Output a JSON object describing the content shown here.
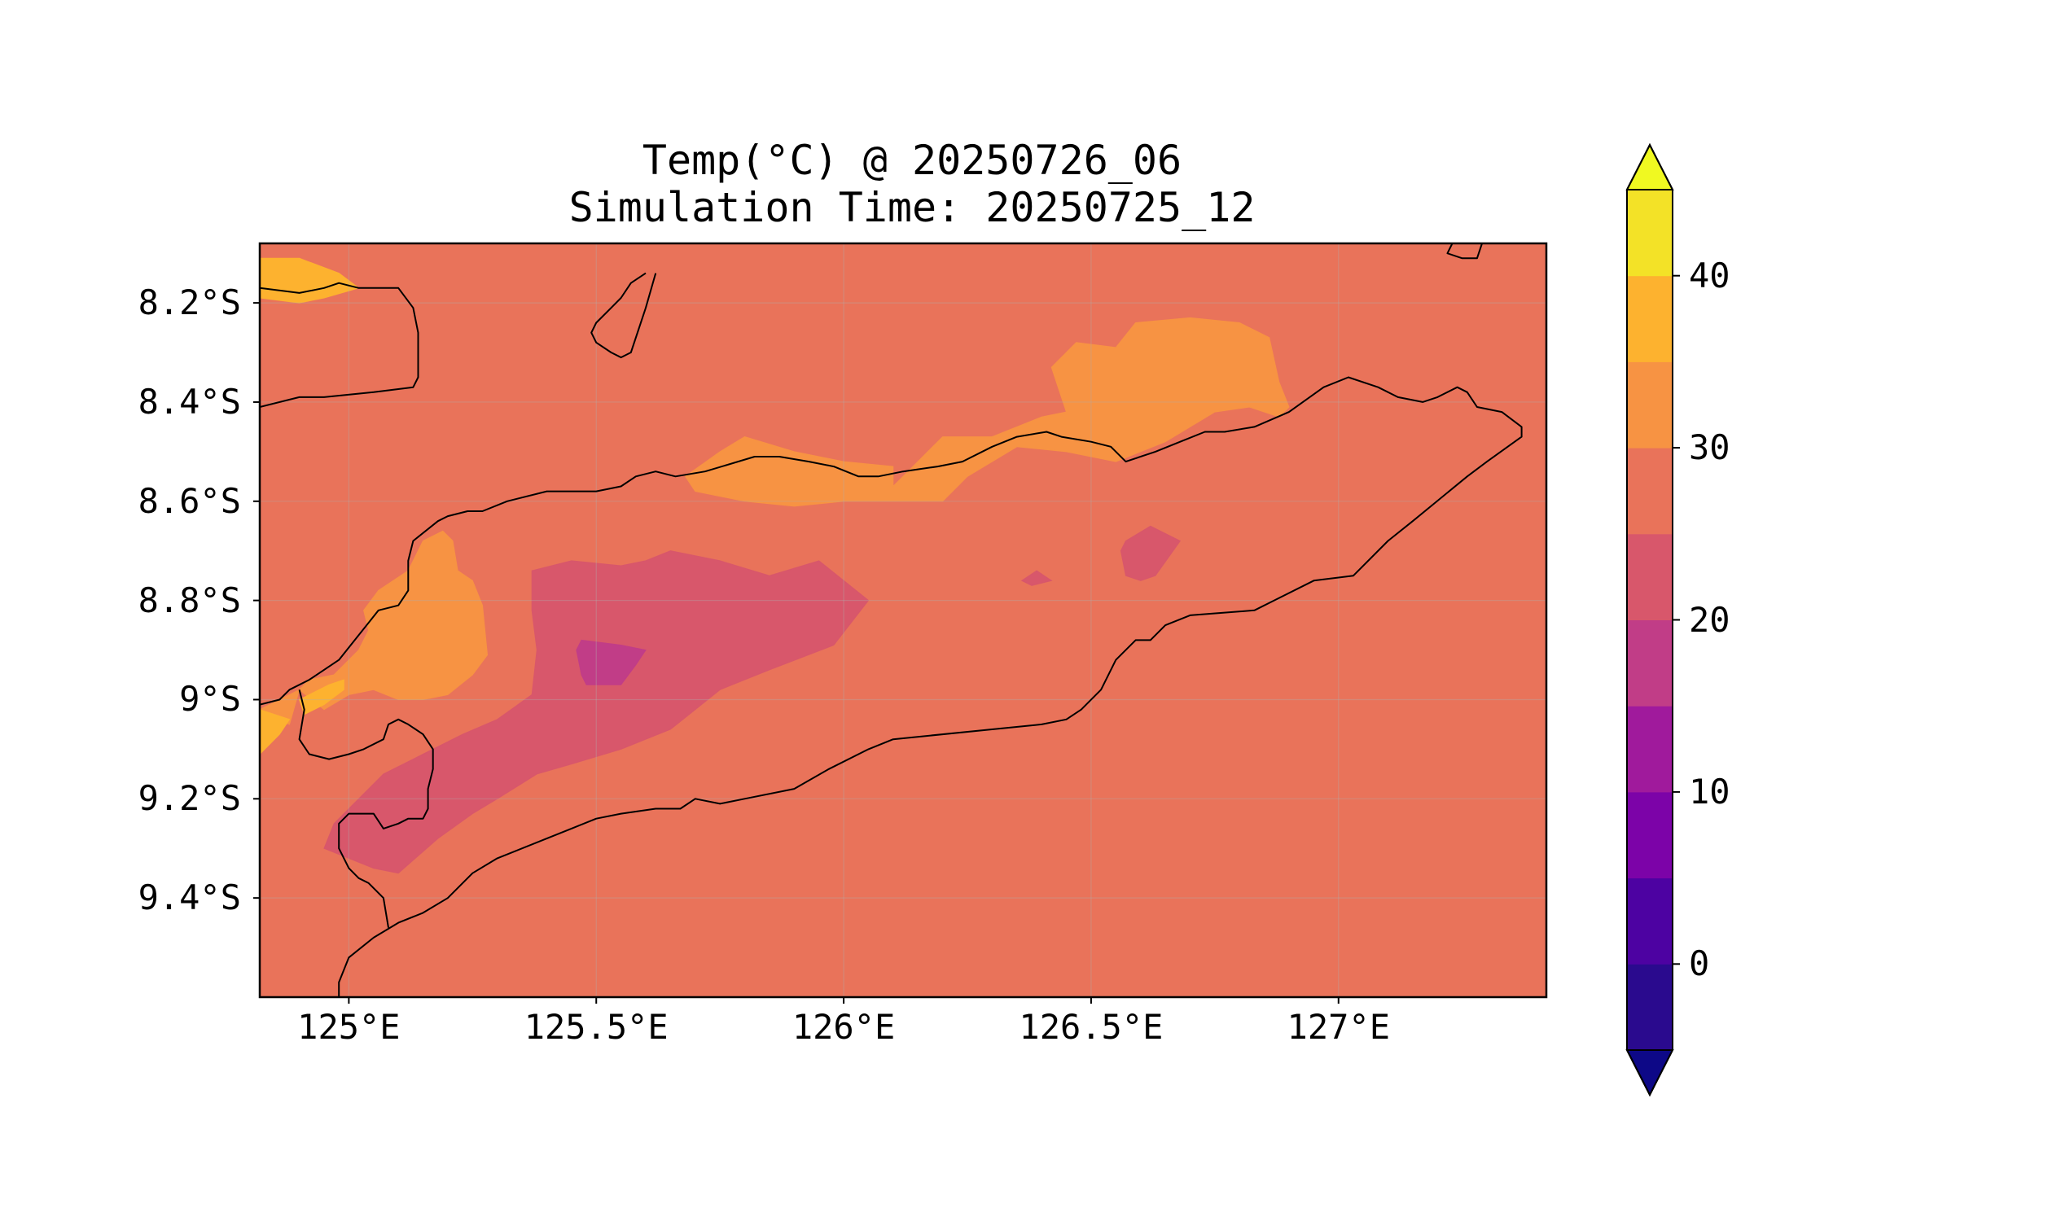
{
  "title": {
    "line1": "Temp(°C) @ 20250726_06",
    "line2": "Simulation Time: 20250725_12"
  },
  "map": {
    "lon_range": [
      124.82,
      127.42
    ],
    "lat_range": [
      -9.6,
      -8.08
    ],
    "background_fill": "#e9735a",
    "x_ticks": [
      {
        "value": 125.0,
        "label": "125°E"
      },
      {
        "value": 125.5,
        "label": "125.5°E"
      },
      {
        "value": 126.0,
        "label": "126°E"
      },
      {
        "value": 126.5,
        "label": "126.5°E"
      },
      {
        "value": 127.0,
        "label": "127°E"
      }
    ],
    "y_ticks": [
      {
        "value": -8.2,
        "label": "8.2°S"
      },
      {
        "value": -8.4,
        "label": "8.4°S"
      },
      {
        "value": -8.6,
        "label": "8.6°S"
      },
      {
        "value": -8.8,
        "label": "8.8°S"
      },
      {
        "value": -9.0,
        "label": "9°S"
      },
      {
        "value": -9.2,
        "label": "9.2°S"
      },
      {
        "value": -9.4,
        "label": "9.4°S"
      }
    ],
    "gridlines": true
  },
  "colorbar": {
    "colormap": "plasma",
    "extend": "both",
    "levels": [
      -5,
      0,
      5,
      10,
      15,
      20,
      25,
      30,
      35,
      40,
      45
    ],
    "bins": [
      {
        "from": -5,
        "to": 0,
        "color": "#2a0a8e"
      },
      {
        "from": 0,
        "to": 5,
        "color": "#4d02a2"
      },
      {
        "from": 5,
        "to": 10,
        "color": "#7c03a8"
      },
      {
        "from": 10,
        "to": 15,
        "color": "#a01a9c"
      },
      {
        "from": 15,
        "to": 20,
        "color": "#c13d87"
      },
      {
        "from": 20,
        "to": 25,
        "color": "#d8576b"
      },
      {
        "from": 25,
        "to": 30,
        "color": "#e9735a"
      },
      {
        "from": 30,
        "to": 35,
        "color": "#f79343"
      },
      {
        "from": 35,
        "to": 40,
        "color": "#fdb22f"
      },
      {
        "from": 40,
        "to": 45,
        "color": "#f3e227"
      }
    ],
    "under_color": "#0d0887",
    "over_color": "#f0f921",
    "ticks": [
      {
        "value": 0,
        "label": "0"
      },
      {
        "value": 10,
        "label": "10"
      },
      {
        "value": 20,
        "label": "20"
      },
      {
        "value": 30,
        "label": "30"
      },
      {
        "value": 40,
        "label": "40"
      }
    ]
  },
  "temperature_regions": [
    {
      "name": "warm-30-35-north-coast",
      "color": "#f79343",
      "points": [
        [
          126.1,
          -8.57
        ],
        [
          126.2,
          -8.47
        ],
        [
          126.3,
          -8.47
        ],
        [
          126.4,
          -8.43
        ],
        [
          126.45,
          -8.42
        ],
        [
          126.42,
          -8.33
        ],
        [
          126.47,
          -8.28
        ],
        [
          126.55,
          -8.29
        ],
        [
          126.59,
          -8.24
        ],
        [
          126.7,
          -8.23
        ],
        [
          126.8,
          -8.24
        ],
        [
          126.86,
          -8.27
        ],
        [
          126.88,
          -8.36
        ],
        [
          126.9,
          -8.41
        ],
        [
          126.88,
          -8.43
        ],
        [
          126.82,
          -8.41
        ],
        [
          126.75,
          -8.42
        ],
        [
          126.65,
          -8.48
        ],
        [
          126.55,
          -8.52
        ],
        [
          126.45,
          -8.5
        ],
        [
          126.35,
          -8.49
        ],
        [
          126.25,
          -8.55
        ],
        [
          126.2,
          -8.6
        ],
        [
          126.1,
          -8.6
        ],
        [
          126.0,
          -8.6
        ],
        [
          125.9,
          -8.61
        ],
        [
          125.8,
          -8.6
        ],
        [
          125.7,
          -8.58
        ],
        [
          125.68,
          -8.55
        ],
        [
          125.75,
          -8.5
        ],
        [
          125.8,
          -8.47
        ],
        [
          125.9,
          -8.5
        ],
        [
          126.0,
          -8.52
        ],
        [
          126.1,
          -8.53
        ]
      ]
    },
    {
      "name": "warm-30-35-west",
      "color": "#f79343",
      "points": [
        [
          125.21,
          -8.68
        ],
        [
          125.22,
          -8.74
        ],
        [
          125.25,
          -8.76
        ],
        [
          125.27,
          -8.81
        ],
        [
          125.28,
          -8.91
        ],
        [
          125.25,
          -8.95
        ],
        [
          125.2,
          -8.99
        ],
        [
          125.15,
          -9.0
        ],
        [
          125.1,
          -9.0
        ],
        [
          125.05,
          -8.98
        ],
        [
          125.0,
          -8.99
        ],
        [
          124.95,
          -9.02
        ],
        [
          124.9,
          -8.98
        ],
        [
          124.88,
          -9.05
        ],
        [
          124.85,
          -9.04
        ],
        [
          124.82,
          -9.05
        ],
        [
          124.82,
          -9.02
        ],
        [
          124.9,
          -8.98
        ],
        [
          124.92,
          -8.96
        ],
        [
          124.97,
          -8.95
        ],
        [
          125.02,
          -8.9
        ],
        [
          125.04,
          -8.86
        ],
        [
          125.03,
          -8.82
        ],
        [
          125.06,
          -8.78
        ],
        [
          125.12,
          -8.74
        ],
        [
          125.15,
          -8.68
        ],
        [
          125.19,
          -8.66
        ]
      ]
    },
    {
      "name": "warm-35-40-west",
      "color": "#fdb22f",
      "points": [
        [
          124.92,
          -8.99
        ],
        [
          124.96,
          -8.97
        ],
        [
          124.99,
          -8.96
        ],
        [
          124.99,
          -8.98
        ],
        [
          124.95,
          -9.01
        ],
        [
          124.91,
          -9.03
        ],
        [
          124.9,
          -9.0
        ]
      ]
    },
    {
      "name": "warm-35-40-southwest",
      "color": "#fdb22f",
      "points": [
        [
          124.82,
          -9.02
        ],
        [
          124.88,
          -9.04
        ],
        [
          124.86,
          -9.07
        ],
        [
          124.82,
          -9.11
        ]
      ]
    },
    {
      "name": "warm-35-40-northwest",
      "color": "#fdb22f",
      "points": [
        [
          124.82,
          -8.11
        ],
        [
          124.9,
          -8.11
        ],
        [
          124.98,
          -8.14
        ],
        [
          125.02,
          -8.17
        ],
        [
          124.95,
          -8.19
        ],
        [
          124.9,
          -8.2
        ],
        [
          124.82,
          -8.19
        ]
      ]
    },
    {
      "name": "cool-20-25-central",
      "color": "#d8576b",
      "points": [
        [
          125.37,
          -8.74
        ],
        [
          125.45,
          -8.72
        ],
        [
          125.55,
          -8.73
        ],
        [
          125.6,
          -8.72
        ],
        [
          125.65,
          -8.7
        ],
        [
          125.75,
          -8.72
        ],
        [
          125.85,
          -8.75
        ],
        [
          125.95,
          -8.72
        ],
        [
          126.05,
          -8.8
        ],
        [
          125.98,
          -8.89
        ],
        [
          125.85,
          -8.94
        ],
        [
          125.75,
          -8.98
        ],
        [
          125.7,
          -9.02
        ],
        [
          125.65,
          -9.06
        ],
        [
          125.55,
          -9.1
        ],
        [
          125.45,
          -9.13
        ],
        [
          125.38,
          -9.15
        ],
        [
          125.3,
          -9.2
        ],
        [
          125.25,
          -9.23
        ],
        [
          125.18,
          -9.28
        ],
        [
          125.1,
          -9.35
        ],
        [
          125.05,
          -9.34
        ],
        [
          125.0,
          -9.32
        ],
        [
          124.95,
          -9.3
        ],
        [
          124.97,
          -9.25
        ],
        [
          125.02,
          -9.2
        ],
        [
          125.07,
          -9.15
        ],
        [
          125.15,
          -9.11
        ],
        [
          125.23,
          -9.07
        ],
        [
          125.3,
          -9.04
        ],
        [
          125.37,
          -8.99
        ],
        [
          125.38,
          -8.9
        ],
        [
          125.37,
          -8.82
        ]
      ]
    },
    {
      "name": "cool-20-25-east",
      "color": "#d8576b",
      "points": [
        [
          126.57,
          -8.68
        ],
        [
          126.62,
          -8.65
        ],
        [
          126.68,
          -8.68
        ],
        [
          126.63,
          -8.75
        ],
        [
          126.6,
          -8.76
        ],
        [
          126.57,
          -8.75
        ],
        [
          126.56,
          -8.7
        ]
      ]
    },
    {
      "name": "cool-20-25-small",
      "color": "#d8576b",
      "points": [
        [
          126.39,
          -8.74
        ],
        [
          126.36,
          -8.76
        ],
        [
          126.38,
          -8.77
        ],
        [
          126.42,
          -8.76
        ]
      ]
    },
    {
      "name": "cool-15-20-central",
      "color": "#c13d87",
      "points": [
        [
          125.47,
          -8.88
        ],
        [
          125.55,
          -8.89
        ],
        [
          125.6,
          -8.9
        ],
        [
          125.58,
          -8.93
        ],
        [
          125.55,
          -8.97
        ],
        [
          125.48,
          -8.97
        ],
        [
          125.47,
          -8.95
        ],
        [
          125.46,
          -8.9
        ]
      ]
    }
  ],
  "coastlines": [
    {
      "name": "timor-main-coastline",
      "points": [
        [
          124.82,
          -9.01
        ],
        [
          124.86,
          -9.0
        ],
        [
          124.88,
          -8.98
        ],
        [
          124.92,
          -8.96
        ],
        [
          124.98,
          -8.92
        ],
        [
          125.02,
          -8.87
        ],
        [
          125.06,
          -8.82
        ],
        [
          125.1,
          -8.81
        ],
        [
          125.12,
          -8.78
        ],
        [
          125.12,
          -8.72
        ],
        [
          125.13,
          -8.68
        ],
        [
          125.18,
          -8.64
        ],
        [
          125.2,
          -8.63
        ],
        [
          125.24,
          -8.62
        ],
        [
          125.27,
          -8.62
        ],
        [
          125.32,
          -8.6
        ],
        [
          125.4,
          -8.58
        ],
        [
          125.5,
          -8.58
        ],
        [
          125.55,
          -8.57
        ],
        [
          125.58,
          -8.55
        ],
        [
          125.62,
          -8.54
        ],
        [
          125.66,
          -8.55
        ],
        [
          125.72,
          -8.54
        ],
        [
          125.82,
          -8.51
        ],
        [
          125.87,
          -8.51
        ],
        [
          125.93,
          -8.52
        ],
        [
          125.98,
          -8.53
        ],
        [
          126.03,
          -8.55
        ],
        [
          126.07,
          -8.55
        ],
        [
          126.12,
          -8.54
        ],
        [
          126.19,
          -8.53
        ],
        [
          126.24,
          -8.52
        ],
        [
          126.3,
          -8.49
        ],
        [
          126.35,
          -8.47
        ],
        [
          126.41,
          -8.46
        ],
        [
          126.44,
          -8.47
        ],
        [
          126.5,
          -8.48
        ],
        [
          126.54,
          -8.49
        ],
        [
          126.57,
          -8.52
        ],
        [
          126.63,
          -8.5
        ],
        [
          126.68,
          -8.48
        ],
        [
          126.73,
          -8.46
        ],
        [
          126.77,
          -8.46
        ],
        [
          126.83,
          -8.45
        ],
        [
          126.9,
          -8.42
        ],
        [
          126.97,
          -8.37
        ],
        [
          127.02,
          -8.35
        ],
        [
          127.08,
          -8.37
        ],
        [
          127.12,
          -8.39
        ],
        [
          127.17,
          -8.4
        ],
        [
          127.2,
          -8.39
        ],
        [
          127.24,
          -8.37
        ],
        [
          127.26,
          -8.38
        ],
        [
          127.28,
          -8.41
        ],
        [
          127.33,
          -8.42
        ],
        [
          127.37,
          -8.45
        ],
        [
          127.37,
          -8.47
        ],
        [
          127.3,
          -8.52
        ],
        [
          127.26,
          -8.55
        ],
        [
          127.15,
          -8.64
        ],
        [
          127.1,
          -8.68
        ],
        [
          127.03,
          -8.75
        ],
        [
          126.95,
          -8.76
        ],
        [
          126.87,
          -8.8
        ],
        [
          126.83,
          -8.82
        ],
        [
          126.7,
          -8.83
        ],
        [
          126.65,
          -8.85
        ],
        [
          126.62,
          -8.88
        ],
        [
          126.59,
          -8.88
        ],
        [
          126.55,
          -8.92
        ],
        [
          126.52,
          -8.98
        ],
        [
          126.48,
          -9.02
        ],
        [
          126.45,
          -9.04
        ],
        [
          126.4,
          -9.05
        ],
        [
          126.3,
          -9.06
        ],
        [
          126.1,
          -9.08
        ],
        [
          126.05,
          -9.1
        ],
        [
          125.97,
          -9.14
        ],
        [
          125.9,
          -9.18
        ],
        [
          125.8,
          -9.2
        ],
        [
          125.75,
          -9.21
        ],
        [
          125.7,
          -9.2
        ],
        [
          125.67,
          -9.22
        ],
        [
          125.62,
          -9.22
        ],
        [
          125.55,
          -9.23
        ],
        [
          125.5,
          -9.24
        ],
        [
          125.45,
          -9.26
        ],
        [
          125.4,
          -9.28
        ],
        [
          125.3,
          -9.32
        ],
        [
          125.25,
          -9.35
        ],
        [
          125.2,
          -9.4
        ],
        [
          125.15,
          -9.43
        ],
        [
          125.1,
          -9.45
        ],
        [
          125.05,
          -9.48
        ],
        [
          125.0,
          -9.52
        ],
        [
          124.98,
          -9.57
        ],
        [
          124.98,
          -9.6
        ]
      ]
    },
    {
      "name": "oecusse-enclave-coastline",
      "points": [
        [
          125.08,
          -9.46
        ],
        [
          125.07,
          -9.4
        ],
        [
          125.04,
          -9.37
        ],
        [
          125.02,
          -9.36
        ],
        [
          125.0,
          -9.34
        ],
        [
          124.98,
          -9.3
        ],
        [
          124.98,
          -9.25
        ],
        [
          125.0,
          -9.23
        ],
        [
          125.05,
          -9.23
        ],
        [
          125.07,
          -9.26
        ],
        [
          125.1,
          -9.25
        ],
        [
          125.12,
          -9.24
        ],
        [
          125.15,
          -9.24
        ],
        [
          125.16,
          -9.22
        ],
        [
          125.16,
          -9.18
        ],
        [
          125.17,
          -9.14
        ],
        [
          125.17,
          -9.1
        ],
        [
          125.15,
          -9.07
        ],
        [
          125.12,
          -9.05
        ],
        [
          125.1,
          -9.04
        ],
        [
          125.08,
          -9.05
        ],
        [
          125.07,
          -9.08
        ],
        [
          125.03,
          -9.1
        ],
        [
          125.0,
          -9.11
        ],
        [
          124.96,
          -9.12
        ],
        [
          124.92,
          -9.11
        ],
        [
          124.9,
          -9.08
        ],
        [
          124.91,
          -9.02
        ],
        [
          124.9,
          -8.98
        ]
      ]
    },
    {
      "name": "wetar-island-coastline",
      "points": [
        [
          124.82,
          -8.17
        ],
        [
          124.9,
          -8.18
        ],
        [
          124.95,
          -8.17
        ],
        [
          124.98,
          -8.16
        ],
        [
          125.02,
          -8.17
        ],
        [
          125.06,
          -8.17
        ],
        [
          125.1,
          -8.17
        ],
        [
          125.13,
          -8.21
        ],
        [
          125.14,
          -8.26
        ],
        [
          125.14,
          -8.35
        ],
        [
          125.13,
          -8.37
        ],
        [
          125.05,
          -8.38
        ],
        [
          124.95,
          -8.39
        ],
        [
          124.9,
          -8.39
        ],
        [
          124.82,
          -8.41
        ]
      ]
    },
    {
      "name": "atauro-island-coastline",
      "points": [
        [
          125.62,
          -8.14
        ],
        [
          125.6,
          -8.21
        ],
        [
          125.57,
          -8.3
        ],
        [
          125.55,
          -8.31
        ],
        [
          125.53,
          -8.3
        ],
        [
          125.5,
          -8.28
        ],
        [
          125.49,
          -8.26
        ],
        [
          125.5,
          -8.24
        ],
        [
          125.53,
          -8.21
        ],
        [
          125.55,
          -8.19
        ],
        [
          125.57,
          -8.16
        ],
        [
          125.6,
          -8.14
        ]
      ]
    },
    {
      "name": "kisar-island-coastline",
      "points": [
        [
          127.29,
          -8.08
        ],
        [
          127.28,
          -8.11
        ],
        [
          127.25,
          -8.11
        ],
        [
          127.22,
          -8.1
        ],
        [
          127.23,
          -8.08
        ]
      ]
    }
  ]
}
